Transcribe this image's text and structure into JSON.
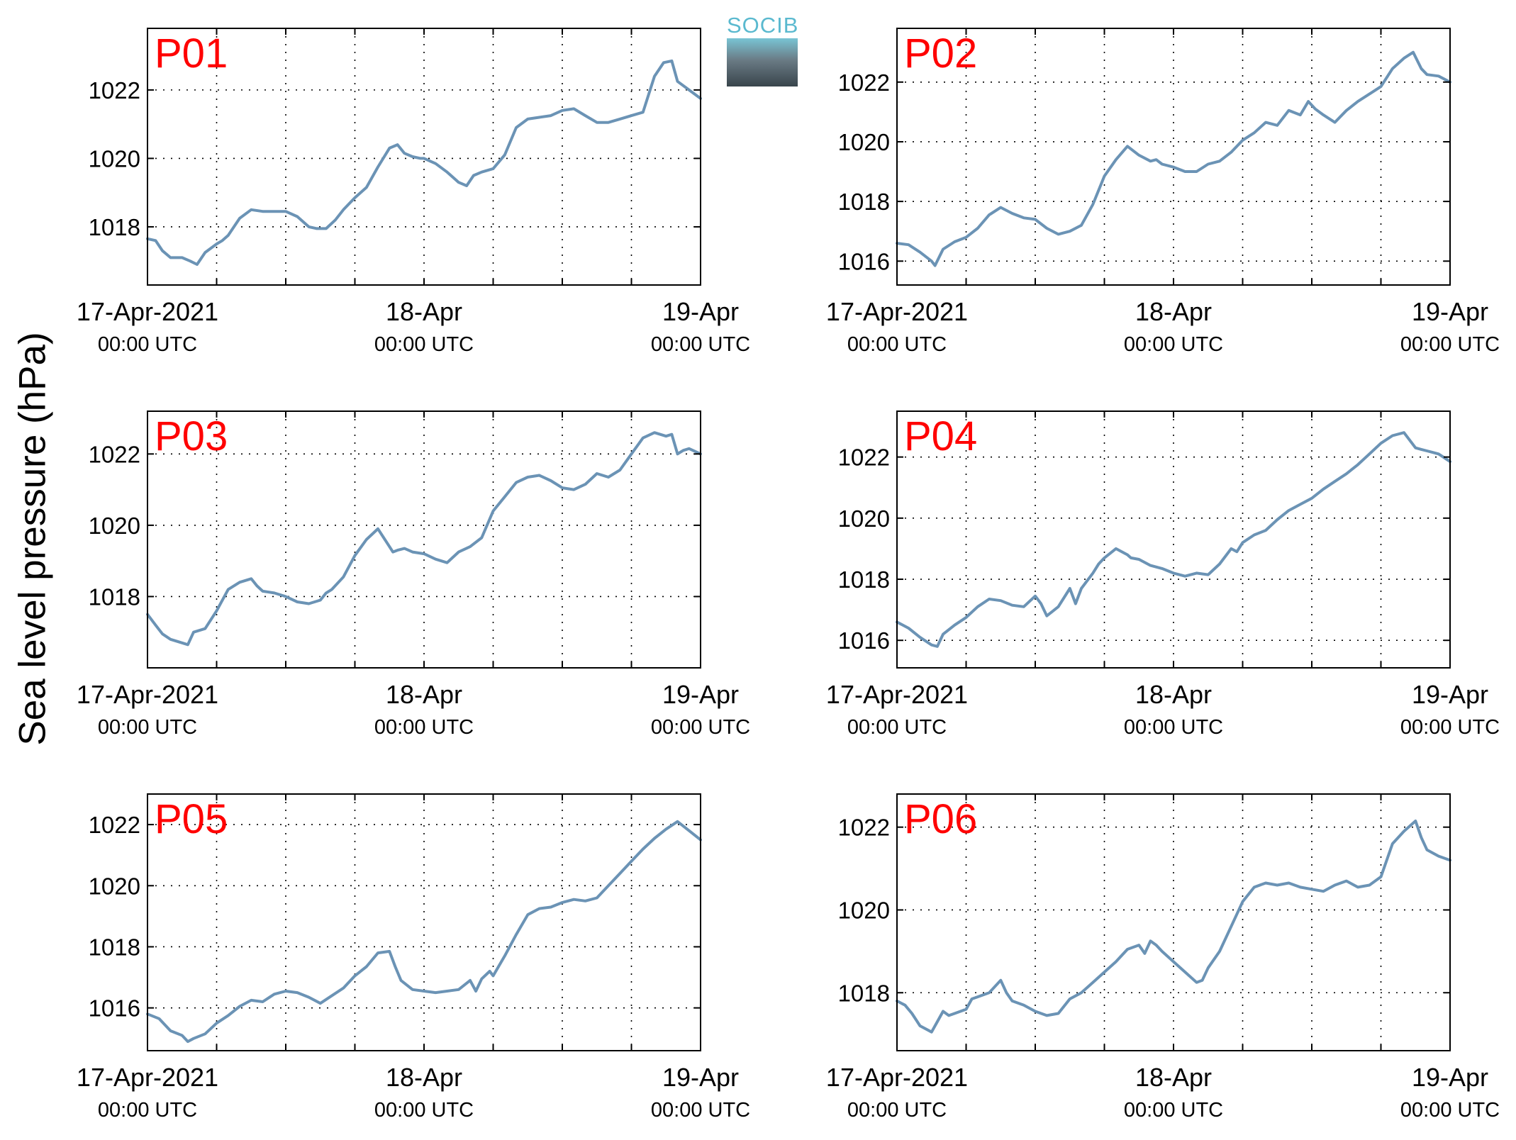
{
  "figure": {
    "ylabel": "Sea level pressure (hPa)",
    "logo_text": "SOCIB"
  },
  "colors": {
    "line": "#6b93b5",
    "panel_label": "#ff0000",
    "axis": "#000000",
    "grid": "#000000"
  },
  "chart_data": [
    {
      "type": "line",
      "title": "P01",
      "x_unit": "hours since 17-Apr-2021 00:00 UTC",
      "xlim": [
        0,
        48
      ],
      "ylim": [
        1016.3,
        1023.8
      ],
      "yticks": [
        1018,
        1020,
        1022
      ],
      "xtick_labels": [
        {
          "x": 0,
          "line1": "17-Apr-2021",
          "line2": "00:00 UTC"
        },
        {
          "x": 24,
          "line1": "18-Apr",
          "line2": "00:00 UTC"
        },
        {
          "x": 48,
          "line1": "19-Apr",
          "line2": "00:00 UTC"
        }
      ],
      "series": [
        {
          "x": [
            0,
            0.7,
            1.3,
            2,
            3,
            3.7,
            4.3,
            5,
            6,
            6.5,
            7,
            8,
            9,
            10,
            11,
            12,
            13,
            14,
            14.7,
            15.5,
            16.3,
            17,
            18,
            19,
            20,
            21,
            21.7,
            22.3,
            23,
            23.7,
            24,
            25,
            26,
            27,
            27.7,
            28.3,
            29,
            30,
            31,
            32,
            33,
            34,
            35,
            36,
            37,
            38,
            39,
            40,
            41,
            42,
            43,
            44,
            44.8,
            45.5,
            46,
            47,
            48
          ],
          "y": [
            1017.65,
            1017.6,
            1017.3,
            1017.1,
            1017.1,
            1017.0,
            1016.9,
            1017.25,
            1017.5,
            1017.6,
            1017.75,
            1018.25,
            1018.5,
            1018.45,
            1018.45,
            1018.45,
            1018.3,
            1018.0,
            1017.95,
            1017.95,
            1018.2,
            1018.5,
            1018.85,
            1019.15,
            1019.75,
            1020.3,
            1020.4,
            1020.15,
            1020.05,
            1020.0,
            1020.0,
            1019.85,
            1019.6,
            1019.3,
            1019.2,
            1019.5,
            1019.6,
            1019.7,
            1020.1,
            1020.9,
            1021.15,
            1021.2,
            1021.25,
            1021.4,
            1021.45,
            1021.25,
            1021.05,
            1021.05,
            1021.15,
            1021.25,
            1021.35,
            1022.4,
            1022.8,
            1022.85,
            1022.25,
            1022.0,
            1021.75
          ]
        }
      ]
    },
    {
      "type": "line",
      "title": "P02",
      "x_unit": "hours since 17-Apr-2021 00:00 UTC",
      "xlim": [
        0,
        48
      ],
      "ylim": [
        1015.2,
        1023.8
      ],
      "yticks": [
        1016,
        1018,
        1020,
        1022
      ],
      "xtick_labels": [
        {
          "x": 0,
          "line1": "17-Apr-2021",
          "line2": "00:00 UTC"
        },
        {
          "x": 24,
          "line1": "18-Apr",
          "line2": "00:00 UTC"
        },
        {
          "x": 48,
          "line1": "19-Apr",
          "line2": "00:00 UTC"
        }
      ],
      "series": [
        {
          "x": [
            0,
            1,
            2,
            3,
            3.3,
            4,
            5,
            6,
            7,
            8,
            9,
            10,
            11,
            12,
            13,
            14,
            15,
            16,
            17,
            18,
            19,
            20,
            21,
            22,
            22.5,
            23,
            24,
            25,
            26,
            27,
            28,
            29,
            30,
            31,
            32,
            33,
            34,
            35,
            35.7,
            36.3,
            37,
            38,
            39,
            40,
            41,
            42,
            43,
            44,
            44.8,
            45.5,
            46,
            47,
            48
          ],
          "y": [
            1016.6,
            1016.55,
            1016.3,
            1016.0,
            1015.85,
            1016.4,
            1016.65,
            1016.8,
            1017.1,
            1017.55,
            1017.8,
            1017.6,
            1017.45,
            1017.4,
            1017.1,
            1016.9,
            1017.0,
            1017.2,
            1017.9,
            1018.85,
            1019.4,
            1019.85,
            1019.55,
            1019.35,
            1019.4,
            1019.25,
            1019.15,
            1019.0,
            1019.0,
            1019.25,
            1019.35,
            1019.65,
            1020.05,
            1020.3,
            1020.65,
            1020.55,
            1021.05,
            1020.9,
            1021.35,
            1021.1,
            1020.9,
            1020.65,
            1021.05,
            1021.35,
            1021.6,
            1021.85,
            1022.45,
            1022.8,
            1023.0,
            1022.45,
            1022.25,
            1022.2,
            1022.0
          ]
        }
      ]
    },
    {
      "type": "line",
      "title": "P03",
      "x_unit": "hours since 17-Apr-2021 00:00 UTC",
      "xlim": [
        0,
        48
      ],
      "ylim": [
        1016.0,
        1023.2
      ],
      "yticks": [
        1018,
        1020,
        1022
      ],
      "xtick_labels": [
        {
          "x": 0,
          "line1": "17-Apr-2021",
          "line2": "00:00 UTC"
        },
        {
          "x": 24,
          "line1": "18-Apr",
          "line2": "00:00 UTC"
        },
        {
          "x": 48,
          "line1": "19-Apr",
          "line2": "00:00 UTC"
        }
      ],
      "series": [
        {
          "x": [
            0,
            0.7,
            1.3,
            2,
            3,
            3.5,
            4,
            5,
            6,
            7,
            8,
            9,
            9.5,
            10,
            11,
            12,
            13,
            14,
            15,
            15.5,
            16,
            17,
            18,
            19,
            20,
            21,
            21.3,
            21.7,
            22.3,
            23,
            24,
            25,
            26,
            27,
            28,
            29,
            30,
            31,
            32,
            33,
            34,
            35,
            36,
            37,
            38,
            39,
            40,
            41,
            42,
            43,
            44,
            45,
            45.5,
            46,
            46.5,
            47,
            48
          ],
          "y": [
            1017.5,
            1017.2,
            1016.95,
            1016.8,
            1016.7,
            1016.65,
            1017.0,
            1017.1,
            1017.6,
            1018.2,
            1018.4,
            1018.5,
            1018.3,
            1018.15,
            1018.1,
            1018.0,
            1017.85,
            1017.8,
            1017.9,
            1018.1,
            1018.2,
            1018.55,
            1019.15,
            1019.6,
            1019.9,
            1019.4,
            1019.25,
            1019.3,
            1019.35,
            1019.25,
            1019.2,
            1019.05,
            1018.95,
            1019.25,
            1019.4,
            1019.65,
            1020.4,
            1020.8,
            1021.2,
            1021.35,
            1021.4,
            1021.25,
            1021.05,
            1021.0,
            1021.15,
            1021.45,
            1021.35,
            1021.55,
            1022.0,
            1022.45,
            1022.6,
            1022.5,
            1022.55,
            1022.0,
            1022.1,
            1022.15,
            1022.0
          ]
        }
      ]
    },
    {
      "type": "line",
      "title": "P04",
      "x_unit": "hours since 17-Apr-2021 00:00 UTC",
      "xlim": [
        0,
        48
      ],
      "ylim": [
        1015.1,
        1023.5
      ],
      "yticks": [
        1016,
        1018,
        1020,
        1022
      ],
      "xtick_labels": [
        {
          "x": 0,
          "line1": "17-Apr-2021",
          "line2": "00:00 UTC"
        },
        {
          "x": 24,
          "line1": "18-Apr",
          "line2": "00:00 UTC"
        },
        {
          "x": 48,
          "line1": "19-Apr",
          "line2": "00:00 UTC"
        }
      ],
      "series": [
        {
          "x": [
            0,
            1,
            2,
            3,
            3.5,
            4,
            5,
            6,
            7,
            8,
            9,
            10,
            11,
            12,
            12.5,
            13,
            13.5,
            14,
            15,
            15.5,
            16,
            17,
            17.5,
            18,
            19,
            20,
            20.3,
            21,
            22,
            23,
            24,
            25,
            26,
            27,
            28,
            29,
            29.5,
            30,
            31,
            32,
            33,
            34,
            35,
            36,
            37,
            38,
            39,
            40,
            41,
            42,
            43,
            44,
            45,
            45.5,
            46,
            47,
            48
          ],
          "y": [
            1016.6,
            1016.4,
            1016.1,
            1015.85,
            1015.8,
            1016.2,
            1016.5,
            1016.75,
            1017.1,
            1017.35,
            1017.3,
            1017.15,
            1017.1,
            1017.45,
            1017.2,
            1016.8,
            1016.95,
            1017.1,
            1017.7,
            1017.2,
            1017.7,
            1018.2,
            1018.5,
            1018.7,
            1019.0,
            1018.8,
            1018.7,
            1018.65,
            1018.45,
            1018.35,
            1018.2,
            1018.1,
            1018.2,
            1018.15,
            1018.5,
            1019.0,
            1018.9,
            1019.2,
            1019.45,
            1019.6,
            1019.95,
            1020.25,
            1020.45,
            1020.65,
            1020.95,
            1021.2,
            1021.45,
            1021.75,
            1022.1,
            1022.45,
            1022.7,
            1022.8,
            1022.3,
            1022.25,
            1022.2,
            1022.1,
            1021.85
          ]
        }
      ]
    },
    {
      "type": "line",
      "title": "P05",
      "x_unit": "hours since 17-Apr-2021 00:00 UTC",
      "xlim": [
        0,
        48
      ],
      "ylim": [
        1014.6,
        1023.0
      ],
      "yticks": [
        1016,
        1018,
        1020,
        1022
      ],
      "xtick_labels": [
        {
          "x": 0,
          "line1": "17-Apr-2021",
          "line2": "00:00 UTC"
        },
        {
          "x": 24,
          "line1": "18-Apr",
          "line2": "00:00 UTC"
        },
        {
          "x": 48,
          "line1": "19-Apr",
          "line2": "00:00 UTC"
        }
      ],
      "series": [
        {
          "x": [
            0,
            1,
            2,
            3,
            3.5,
            4,
            5,
            6,
            7,
            8,
            9,
            10,
            11,
            12,
            13,
            14,
            15,
            16,
            17,
            18,
            19,
            20,
            21,
            21.5,
            22,
            23,
            24,
            25,
            26,
            27,
            28,
            28.5,
            29,
            29.7,
            30,
            31,
            32,
            33,
            34,
            35,
            36,
            37,
            38,
            39,
            40,
            41,
            42,
            43,
            44,
            45,
            46,
            47,
            48
          ],
          "y": [
            1015.8,
            1015.65,
            1015.25,
            1015.1,
            1014.9,
            1015.0,
            1015.15,
            1015.5,
            1015.75,
            1016.05,
            1016.25,
            1016.2,
            1016.45,
            1016.55,
            1016.5,
            1016.35,
            1016.15,
            1016.4,
            1016.65,
            1017.05,
            1017.35,
            1017.8,
            1017.85,
            1017.35,
            1016.9,
            1016.6,
            1016.55,
            1016.5,
            1016.55,
            1016.6,
            1016.9,
            1016.55,
            1016.95,
            1017.2,
            1017.05,
            1017.7,
            1018.4,
            1019.05,
            1019.25,
            1019.3,
            1019.45,
            1019.55,
            1019.5,
            1019.6,
            1020.0,
            1020.4,
            1020.8,
            1021.2,
            1021.55,
            1021.85,
            1022.1,
            1021.8,
            1021.5
          ]
        }
      ]
    },
    {
      "type": "line",
      "title": "P06",
      "x_unit": "hours since 17-Apr-2021 00:00 UTC",
      "xlim": [
        0,
        48
      ],
      "ylim": [
        1016.6,
        1022.8
      ],
      "yticks": [
        1018,
        1020,
        1022
      ],
      "xtick_labels": [
        {
          "x": 0,
          "line1": "17-Apr-2021",
          "line2": "00:00 UTC"
        },
        {
          "x": 24,
          "line1": "18-Apr",
          "line2": "00:00 UTC"
        },
        {
          "x": 48,
          "line1": "19-Apr",
          "line2": "00:00 UTC"
        }
      ],
      "series": [
        {
          "x": [
            0,
            0.7,
            1.3,
            2,
            3,
            3.5,
            4,
            4.5,
            5,
            6,
            6.5,
            7,
            8,
            9,
            9.5,
            10,
            11,
            12,
            13,
            14,
            15,
            16,
            17,
            18,
            19,
            20,
            21,
            21.5,
            22,
            22.5,
            23,
            24,
            25,
            26,
            26.5,
            27,
            28,
            29,
            30,
            31,
            32,
            33,
            34,
            35,
            36,
            37,
            38,
            39,
            40,
            41,
            42,
            43,
            44,
            45,
            45.5,
            46,
            47,
            48
          ],
          "y": [
            1017.8,
            1017.7,
            1017.5,
            1017.2,
            1017.05,
            1017.3,
            1017.55,
            1017.45,
            1017.5,
            1017.6,
            1017.85,
            1017.9,
            1018.0,
            1018.3,
            1018.0,
            1017.8,
            1017.7,
            1017.55,
            1017.45,
            1017.5,
            1017.85,
            1018.0,
            1018.25,
            1018.5,
            1018.75,
            1019.05,
            1019.15,
            1018.95,
            1019.25,
            1019.15,
            1019.0,
            1018.75,
            1018.5,
            1018.25,
            1018.3,
            1018.6,
            1019.0,
            1019.6,
            1020.2,
            1020.55,
            1020.65,
            1020.6,
            1020.65,
            1020.55,
            1020.5,
            1020.45,
            1020.6,
            1020.7,
            1020.55,
            1020.6,
            1020.8,
            1021.6,
            1021.9,
            1022.15,
            1021.75,
            1021.45,
            1021.3,
            1021.2
          ]
        }
      ]
    }
  ]
}
